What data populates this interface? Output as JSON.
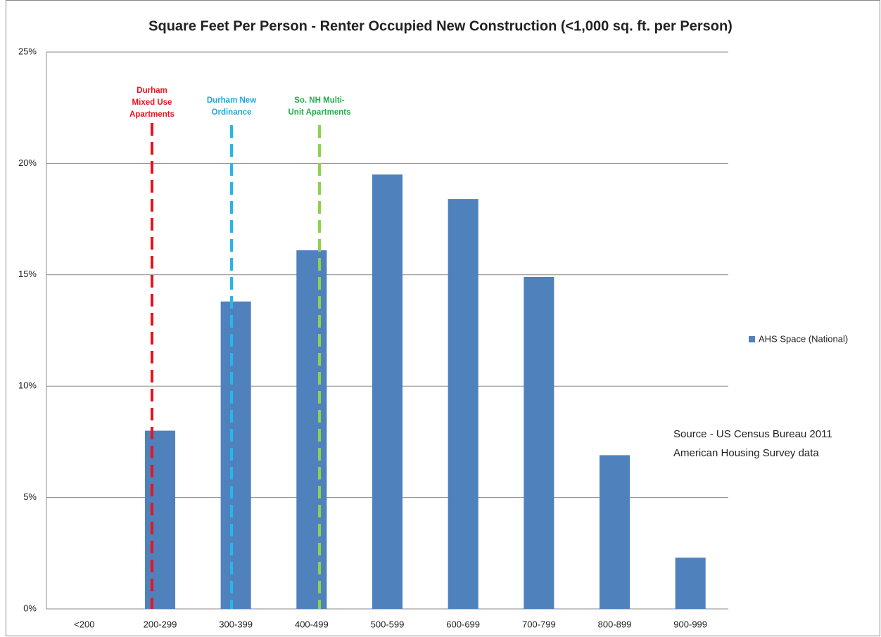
{
  "chart_data": {
    "type": "bar",
    "title": "Square Feet Per Person - Renter Occupied  New Construction (<1,000 sq. ft. per Person)",
    "categories": [
      "<200",
      "200-299",
      "300-399",
      "400-499",
      "500-599",
      "600-699",
      "700-799",
      "800-899",
      "900-999"
    ],
    "series": [
      {
        "name": "AHS Space (National)",
        "color": "#4f81bd",
        "values": [
          0,
          8.0,
          13.8,
          16.1,
          19.5,
          18.4,
          14.9,
          6.9,
          2.3
        ]
      }
    ],
    "ylim": [
      0,
      25
    ],
    "yticks": [
      {
        "value": 0,
        "label": "0%"
      },
      {
        "value": 5,
        "label": "5%"
      },
      {
        "value": 10,
        "label": "10%"
      },
      {
        "value": 15,
        "label": "15%"
      },
      {
        "value": 20,
        "label": "20%"
      },
      {
        "value": 25,
        "label": "25%"
      }
    ],
    "grid": true,
    "legend": "right",
    "annotations": [
      {
        "lines": [
          "Durham",
          "Mixed Use",
          "Apartments"
        ],
        "color": "#e8141b",
        "line_color": "#e8141b"
      },
      {
        "lines": [
          "Durham New",
          "Ordinance"
        ],
        "color": "#1ea6e0",
        "line_color": "#29b5ec"
      },
      {
        "lines": [
          "So. NH Multi-",
          "Unit Apartments"
        ],
        "color": "#1fae48",
        "line_color": "#8fd14f"
      }
    ],
    "source": [
      "Source - US Census Bureau 2011",
      "American Housing Survey data"
    ]
  }
}
